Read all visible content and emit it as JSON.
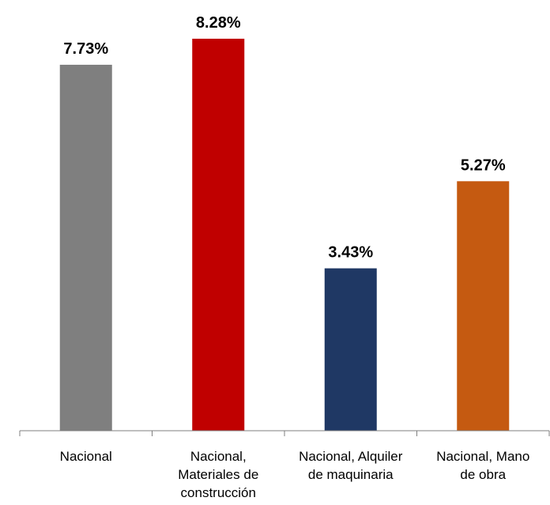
{
  "chart_data": {
    "type": "bar",
    "title": "",
    "xlabel": "",
    "ylabel": "",
    "categories": [
      [
        "Nacional"
      ],
      [
        "Nacional,",
        "Materiales de",
        "construcción"
      ],
      [
        "Nacional, Alquiler",
        "de maquinaria"
      ],
      [
        "Nacional, Mano",
        "de obra"
      ]
    ],
    "values": [
      7.73,
      8.28,
      3.43,
      5.27
    ],
    "value_labels": [
      "7.73%",
      "8.28%",
      "3.43%",
      "5.27%"
    ],
    "colors": [
      "#7f7f7f",
      "#c00000",
      "#1f3864",
      "#c55a11"
    ],
    "ylim": [
      0,
      8.28
    ],
    "grid": false,
    "legend": "none"
  }
}
